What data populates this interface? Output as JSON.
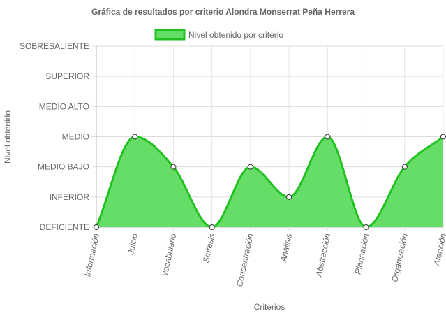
{
  "chart_data": {
    "type": "area",
    "title": "Gráfica de resultados por criterio Alondra Monserrat Peña Herrera",
    "xlabel": "Criterios",
    "ylabel": "Nivel obtenido",
    "y_categories": [
      "DEFICIENTE",
      "INFERIOR",
      "MEDIO BAJO",
      "MEDIO",
      "MEDIO ALTO",
      "SUPERIOR",
      "SOBRESALIENTE"
    ],
    "categories": [
      "Información",
      "Juicio",
      "Vocabulario",
      "Síntesis",
      "Concentración",
      "Análisis",
      "Abstracción",
      "Planeación",
      "Organización",
      "Atención"
    ],
    "series": [
      {
        "name": "Nivel obtenido por criterio",
        "values": [
          "DEFICIENTE",
          "MEDIO",
          "MEDIO BAJO",
          "DEFICIENTE",
          "MEDIO BAJO",
          "INFERIOR",
          "MEDIO",
          "DEFICIENTE",
          "MEDIO BAJO",
          "MEDIO"
        ],
        "level_index": [
          0,
          3,
          2,
          0,
          2,
          1,
          3,
          0,
          2,
          3
        ],
        "fill_color": "#66dd66",
        "line_color": "#22c122"
      }
    ],
    "legend_position": "top",
    "grid": true
  }
}
